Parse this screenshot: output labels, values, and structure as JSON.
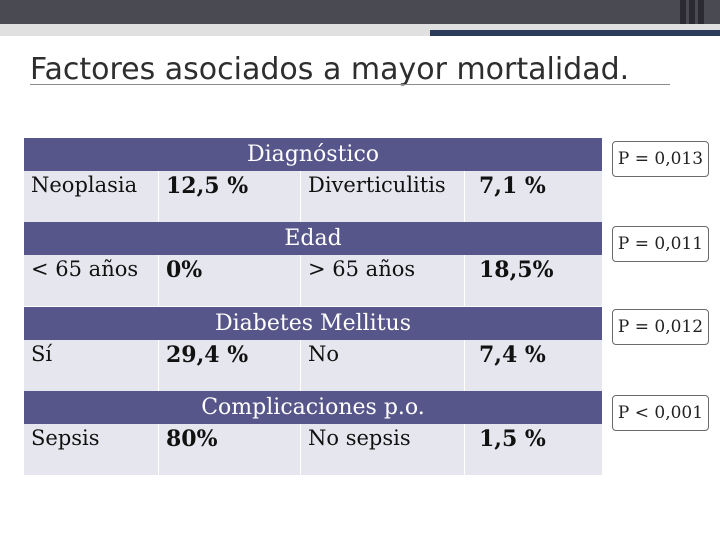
{
  "slide": {
    "title": "Factores asociados a mayor mortalidad."
  },
  "sections": [
    {
      "header": "Diagnóstico",
      "cells": [
        "Neoplasia",
        "12,5 %",
        "Diverticulitis",
        "7,1 %"
      ],
      "p_value": "P = 0,013"
    },
    {
      "header": "Edad",
      "cells": [
        "< 65 años",
        "0%",
        "> 65 años",
        "18,5%"
      ],
      "p_value": "P = 0,011"
    },
    {
      "header": "Diabetes Mellitus",
      "cells": [
        "Sí",
        "29,4 %",
        "No",
        "7,4 %"
      ],
      "p_value": "P = 0,012"
    },
    {
      "header": "Complicaciones p.o.",
      "cells": [
        "Sepsis",
        "80%",
        "No sepsis",
        "1,5 %"
      ],
      "p_value": "P < 0,001"
    }
  ],
  "colors": {
    "header_bg": "#56568a",
    "row_bg": "#e6e6ee",
    "title_text": "#2e2e2e"
  }
}
